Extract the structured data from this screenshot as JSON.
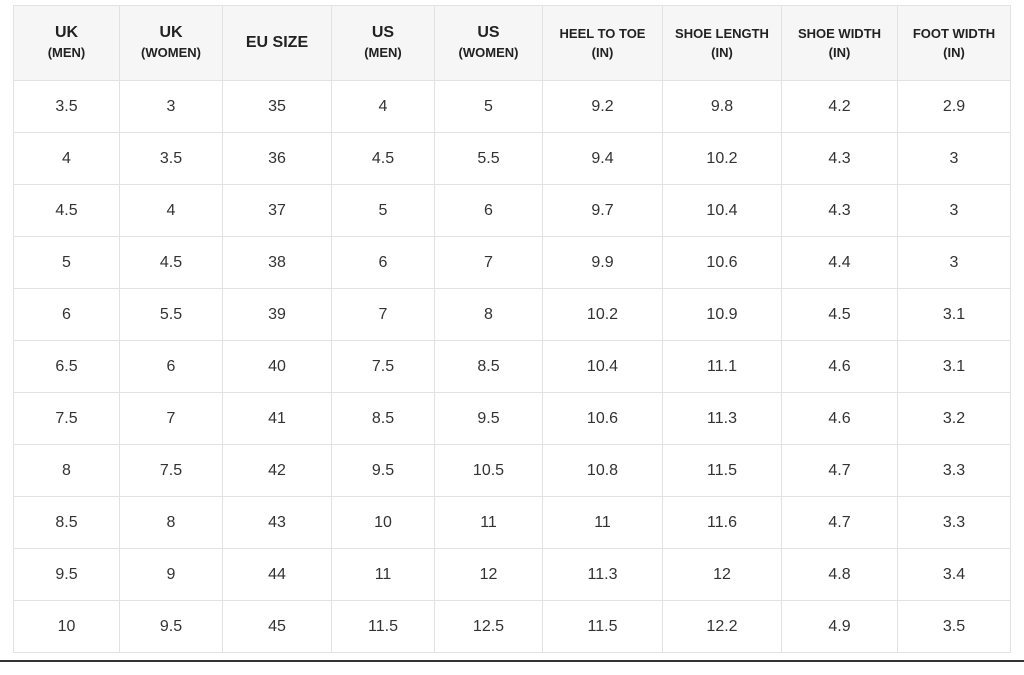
{
  "table": {
    "header": [
      [
        "UK",
        "(MEN)"
      ],
      [
        "UK",
        "(WOMEN)"
      ],
      [
        "EU SIZE"
      ],
      [
        "US",
        "(MEN)"
      ],
      [
        "US",
        "(WOMEN)"
      ],
      [
        "HEEL TO TOE",
        "(IN)"
      ],
      [
        "SHOE LENGTH",
        "(IN)"
      ],
      [
        "SHOE WIDTH",
        "(IN)"
      ],
      [
        "FOOT WIDTH",
        "(IN)"
      ]
    ],
    "rows": [
      [
        "3.5",
        "3",
        "35",
        "4",
        "5",
        "9.2",
        "9.8",
        "4.2",
        "2.9"
      ],
      [
        "4",
        "3.5",
        "36",
        "4.5",
        "5.5",
        "9.4",
        "10.2",
        "4.3",
        "3"
      ],
      [
        "4.5",
        "4",
        "37",
        "5",
        "6",
        "9.7",
        "10.4",
        "4.3",
        "3"
      ],
      [
        "5",
        "4.5",
        "38",
        "6",
        "7",
        "9.9",
        "10.6",
        "4.4",
        "3"
      ],
      [
        "6",
        "5.5",
        "39",
        "7",
        "8",
        "10.2",
        "10.9",
        "4.5",
        "3.1"
      ],
      [
        "6.5",
        "6",
        "40",
        "7.5",
        "8.5",
        "10.4",
        "11.1",
        "4.6",
        "3.1"
      ],
      [
        "7.5",
        "7",
        "41",
        "8.5",
        "9.5",
        "10.6",
        "11.3",
        "4.6",
        "3.2"
      ],
      [
        "8",
        "7.5",
        "42",
        "9.5",
        "10.5",
        "10.8",
        "11.5",
        "4.7",
        "3.3"
      ],
      [
        "8.5",
        "8",
        "43",
        "10",
        "11",
        "11",
        "11.6",
        "4.7",
        "3.3"
      ],
      [
        "9.5",
        "9",
        "44",
        "11",
        "12",
        "11.3",
        "12",
        "4.8",
        "3.4"
      ],
      [
        "10",
        "9.5",
        "45",
        "11.5",
        "12.5",
        "11.5",
        "12.2",
        "4.9",
        "3.5"
      ]
    ]
  }
}
